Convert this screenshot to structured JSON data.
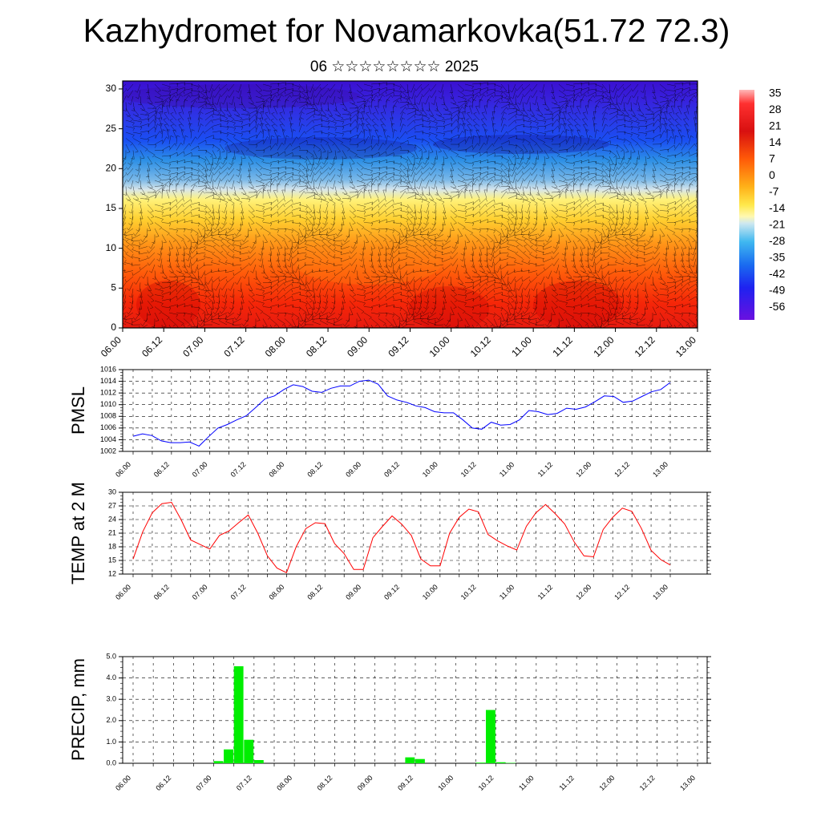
{
  "title": "Kazhydromet for Novamarkovka(51.72 72.3)",
  "subtitle": "06 ☆☆☆☆☆☆☆☆ 2025",
  "time_labels": [
    "06.00",
    "06.12",
    "07.00",
    "07.12",
    "08.00",
    "08.12",
    "09.00",
    "09.12",
    "10.00",
    "10.12",
    "11.00",
    "11.12",
    "12.00",
    "12.12",
    "13.00"
  ],
  "colorbar_labels": [
    "35",
    "28",
    "21",
    "14",
    "7",
    "0",
    "-7",
    "-14",
    "-21",
    "-28",
    "-35",
    "-42",
    "-49",
    "-56"
  ],
  "chart_data": [
    {
      "type": "heatmap",
      "title": "Kazhydromet for Novamarkovka(51.72 72.3)",
      "subtitle": "06 ☆☆☆☆☆☆☆☆ 2025",
      "x": [
        "06.00",
        "06.12",
        "07.00",
        "07.12",
        "08.00",
        "08.12",
        "09.00",
        "09.12",
        "10.00",
        "10.12",
        "11.00",
        "11.12",
        "12.00",
        "12.12",
        "13.00"
      ],
      "y_ticks": [
        0,
        5,
        10,
        15,
        20,
        25,
        30
      ],
      "ylim": [
        0,
        31
      ],
      "colorbar": {
        "min": -56,
        "max": 35,
        "ticks": [
          35,
          28,
          21,
          14,
          7,
          0,
          -7,
          -14,
          -21,
          -28,
          -35,
          -42,
          -49,
          -56
        ]
      },
      "overlay": "wind barbs"
    },
    {
      "type": "line",
      "ylabel": "PMSL",
      "ylim": [
        1002,
        1016
      ],
      "y_ticks": [
        "1002",
        "1004",
        "1006",
        "1008",
        "1010",
        "1012",
        "1014",
        "1016"
      ],
      "color": "#0000ff",
      "values": [
        1004.6,
        1005.0,
        1004.7,
        1003.8,
        1003.5,
        1003.5,
        1003.6,
        1002.9,
        1004.5,
        1006.0,
        1006.6,
        1007.4,
        1008.1,
        1009.5,
        1011.0,
        1011.5,
        1012.6,
        1013.4,
        1013.1,
        1012.3,
        1012.1,
        1012.8,
        1013.2,
        1013.2,
        1014.0,
        1014.2,
        1013.5,
        1011.5,
        1010.8,
        1010.4,
        1009.8,
        1009.5,
        1008.8,
        1008.6,
        1008.6,
        1007.4,
        1006.0,
        1005.8,
        1007.0,
        1006.5,
        1006.6,
        1007.4,
        1009.0,
        1008.8,
        1008.3,
        1008.5,
        1009.4,
        1009.2,
        1009.6,
        1010.5,
        1011.5,
        1011.4,
        1010.4,
        1010.6,
        1011.4,
        1012.2,
        1012.6,
        1013.8
      ]
    },
    {
      "type": "line",
      "ylabel": "TEMP at 2 M",
      "ylim": [
        12,
        30
      ],
      "y_ticks": [
        "12",
        "15",
        "18",
        "21",
        "24",
        "27",
        "30"
      ],
      "color": "#ff0000",
      "values": [
        15.3,
        21.3,
        25.5,
        27.5,
        27.8,
        24.0,
        19.5,
        18.5,
        17.5,
        20.5,
        21.5,
        23.3,
        25.0,
        21.0,
        16.0,
        13.3,
        12.3,
        18.0,
        22.0,
        23.3,
        23.1,
        18.7,
        16.5,
        13.0,
        13.0,
        20.0,
        22.5,
        24.8,
        23.0,
        20.5,
        15.3,
        13.8,
        13.8,
        21.0,
        24.5,
        26.3,
        25.7,
        20.7,
        19.3,
        18.2,
        17.3,
        22.5,
        25.5,
        27.3,
        25.3,
        23.0,
        19.0,
        16.0,
        15.8,
        21.8,
        24.5,
        26.5,
        25.8,
        22.0,
        17.2,
        15.2,
        14.0
      ]
    },
    {
      "type": "bar",
      "ylabel": "PRECIP, mm",
      "ylim": [
        0,
        5
      ],
      "y_ticks": [
        "0.0",
        "1.0",
        "2.0",
        "3.0",
        "4.0",
        "5.0"
      ],
      "color": "#00ee00",
      "values": [
        0,
        0,
        0,
        0,
        0,
        0,
        0,
        0,
        0.1,
        0.65,
        4.55,
        1.1,
        0.15,
        0,
        0,
        0,
        0,
        0,
        0,
        0,
        0,
        0,
        0,
        0,
        0,
        0,
        0,
        0.28,
        0.2,
        0,
        0,
        0,
        0,
        0,
        0.03,
        2.5,
        0.05,
        0.02,
        0,
        0,
        0,
        0,
        0,
        0,
        0,
        0,
        0,
        0,
        0,
        0,
        0,
        0,
        0,
        0,
        0,
        0
      ]
    }
  ]
}
